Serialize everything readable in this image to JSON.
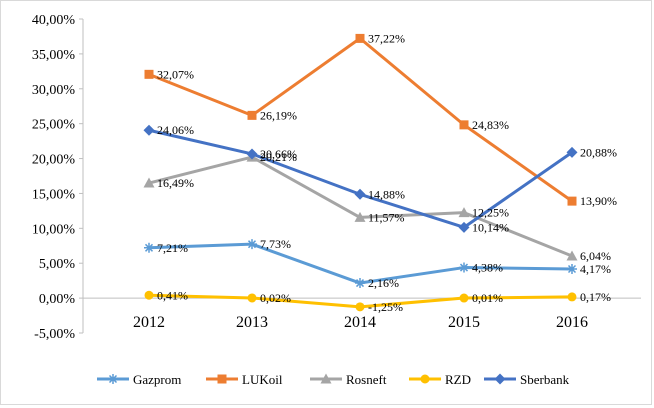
{
  "chart_data": {
    "type": "line",
    "title": "",
    "xlabel": "",
    "ylabel": "",
    "categories": [
      "2012",
      "2013",
      "2014",
      "2015",
      "2016"
    ],
    "ylim": [
      -5,
      40
    ],
    "y_ticks": [
      "-5,00%",
      "0,00%",
      "5,00%",
      "10,00%",
      "15,00%",
      "20,00%",
      "25,00%",
      "30,00%",
      "35,00%",
      "40,00%"
    ],
    "grid": false,
    "legend_position": "bottom",
    "series": [
      {
        "name": "Gazprom",
        "color": "#5b9bd5",
        "marker": "star",
        "values": [
          7.21,
          7.73,
          2.16,
          4.38,
          4.17
        ],
        "labels": [
          "7,21%",
          "7,73%",
          "2,16%",
          "4,38%",
          "4,17%"
        ]
      },
      {
        "name": "LUKoil",
        "color": "#ed7d31",
        "marker": "square",
        "values": [
          32.07,
          26.19,
          37.22,
          24.83,
          13.9
        ],
        "labels": [
          "32,07%",
          "26,19%",
          "37,22%",
          "24,83%",
          "13,90%"
        ]
      },
      {
        "name": "Rosneft",
        "color": "#a5a5a5",
        "marker": "triangle",
        "values": [
          16.49,
          20.21,
          11.57,
          12.25,
          6.04
        ],
        "labels": [
          "16,49%",
          "20,21%",
          "11,57%",
          "12,25%",
          "6,04%"
        ]
      },
      {
        "name": "RZD",
        "color": "#ffc000",
        "marker": "circle",
        "values": [
          0.41,
          0.02,
          -1.25,
          0.01,
          0.17
        ],
        "labels": [
          "0,41%",
          "0,02%",
          "-1,25%",
          "0,01%",
          "0,17%"
        ]
      },
      {
        "name": "Sberbank",
        "color": "#4472c4",
        "marker": "diamond",
        "values": [
          24.06,
          20.66,
          14.88,
          10.14,
          20.88
        ],
        "labels": [
          "24,06%",
          "20,66%",
          "14,88%",
          "10,14%",
          "20,88%"
        ]
      }
    ]
  }
}
